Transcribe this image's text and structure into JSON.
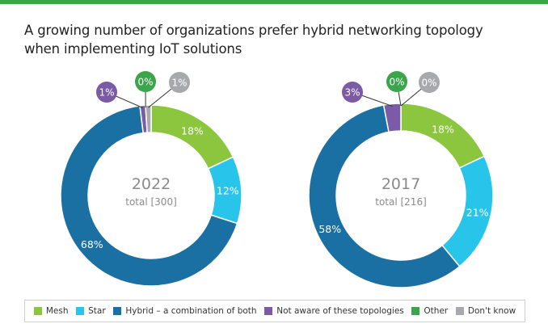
{
  "title": {
    "line1": "A growing number of organizations prefer hybrid networking topology",
    "line2": "when implementing IoT solutions"
  },
  "colors": {
    "mesh": "#8cc63f",
    "star": "#29c4ea",
    "hybrid": "#1a6fa3",
    "not_aware": "#7b5aa6",
    "other": "#3aa54a",
    "dont_know": "#a7a9ac"
  },
  "legend": [
    {
      "label": "Mesh",
      "color": "#8cc63f"
    },
    {
      "label": "Star",
      "color": "#29c4ea"
    },
    {
      "label": "Hybrid – a combination of both",
      "color": "#1a6fa3"
    },
    {
      "label": "Not aware of these topologies",
      "color": "#7b5aa6"
    },
    {
      "label": "Other",
      "color": "#3aa54a"
    },
    {
      "label": "Don't know",
      "color": "#a7a9ac"
    }
  ],
  "chart_data": [
    {
      "type": "pie",
      "center_year": "2022",
      "center_total": "total [300]",
      "slices": [
        {
          "name": "Mesh",
          "value": 18,
          "label": "18%"
        },
        {
          "name": "Star",
          "value": 12,
          "label": "12%"
        },
        {
          "name": "Hybrid – a combination of both",
          "value": 68,
          "label": "68%"
        },
        {
          "name": "Not aware of these topologies",
          "value": 1,
          "label": "1%"
        },
        {
          "name": "Other",
          "value": 0,
          "label": "0%"
        },
        {
          "name": "Don't know",
          "value": 1,
          "label": "1%"
        }
      ]
    },
    {
      "type": "pie",
      "center_year": "2017",
      "center_total": "total [216]",
      "slices": [
        {
          "name": "Mesh",
          "value": 18,
          "label": "18%"
        },
        {
          "name": "Star",
          "value": 21,
          "label": "21%"
        },
        {
          "name": "Hybrid – a combination of both",
          "value": 58,
          "label": "58%"
        },
        {
          "name": "Not aware of these topologies",
          "value": 3,
          "label": "3%"
        },
        {
          "name": "Other",
          "value": 0,
          "label": "0%"
        },
        {
          "name": "Don't know",
          "value": 0,
          "label": "0%"
        }
      ]
    }
  ]
}
